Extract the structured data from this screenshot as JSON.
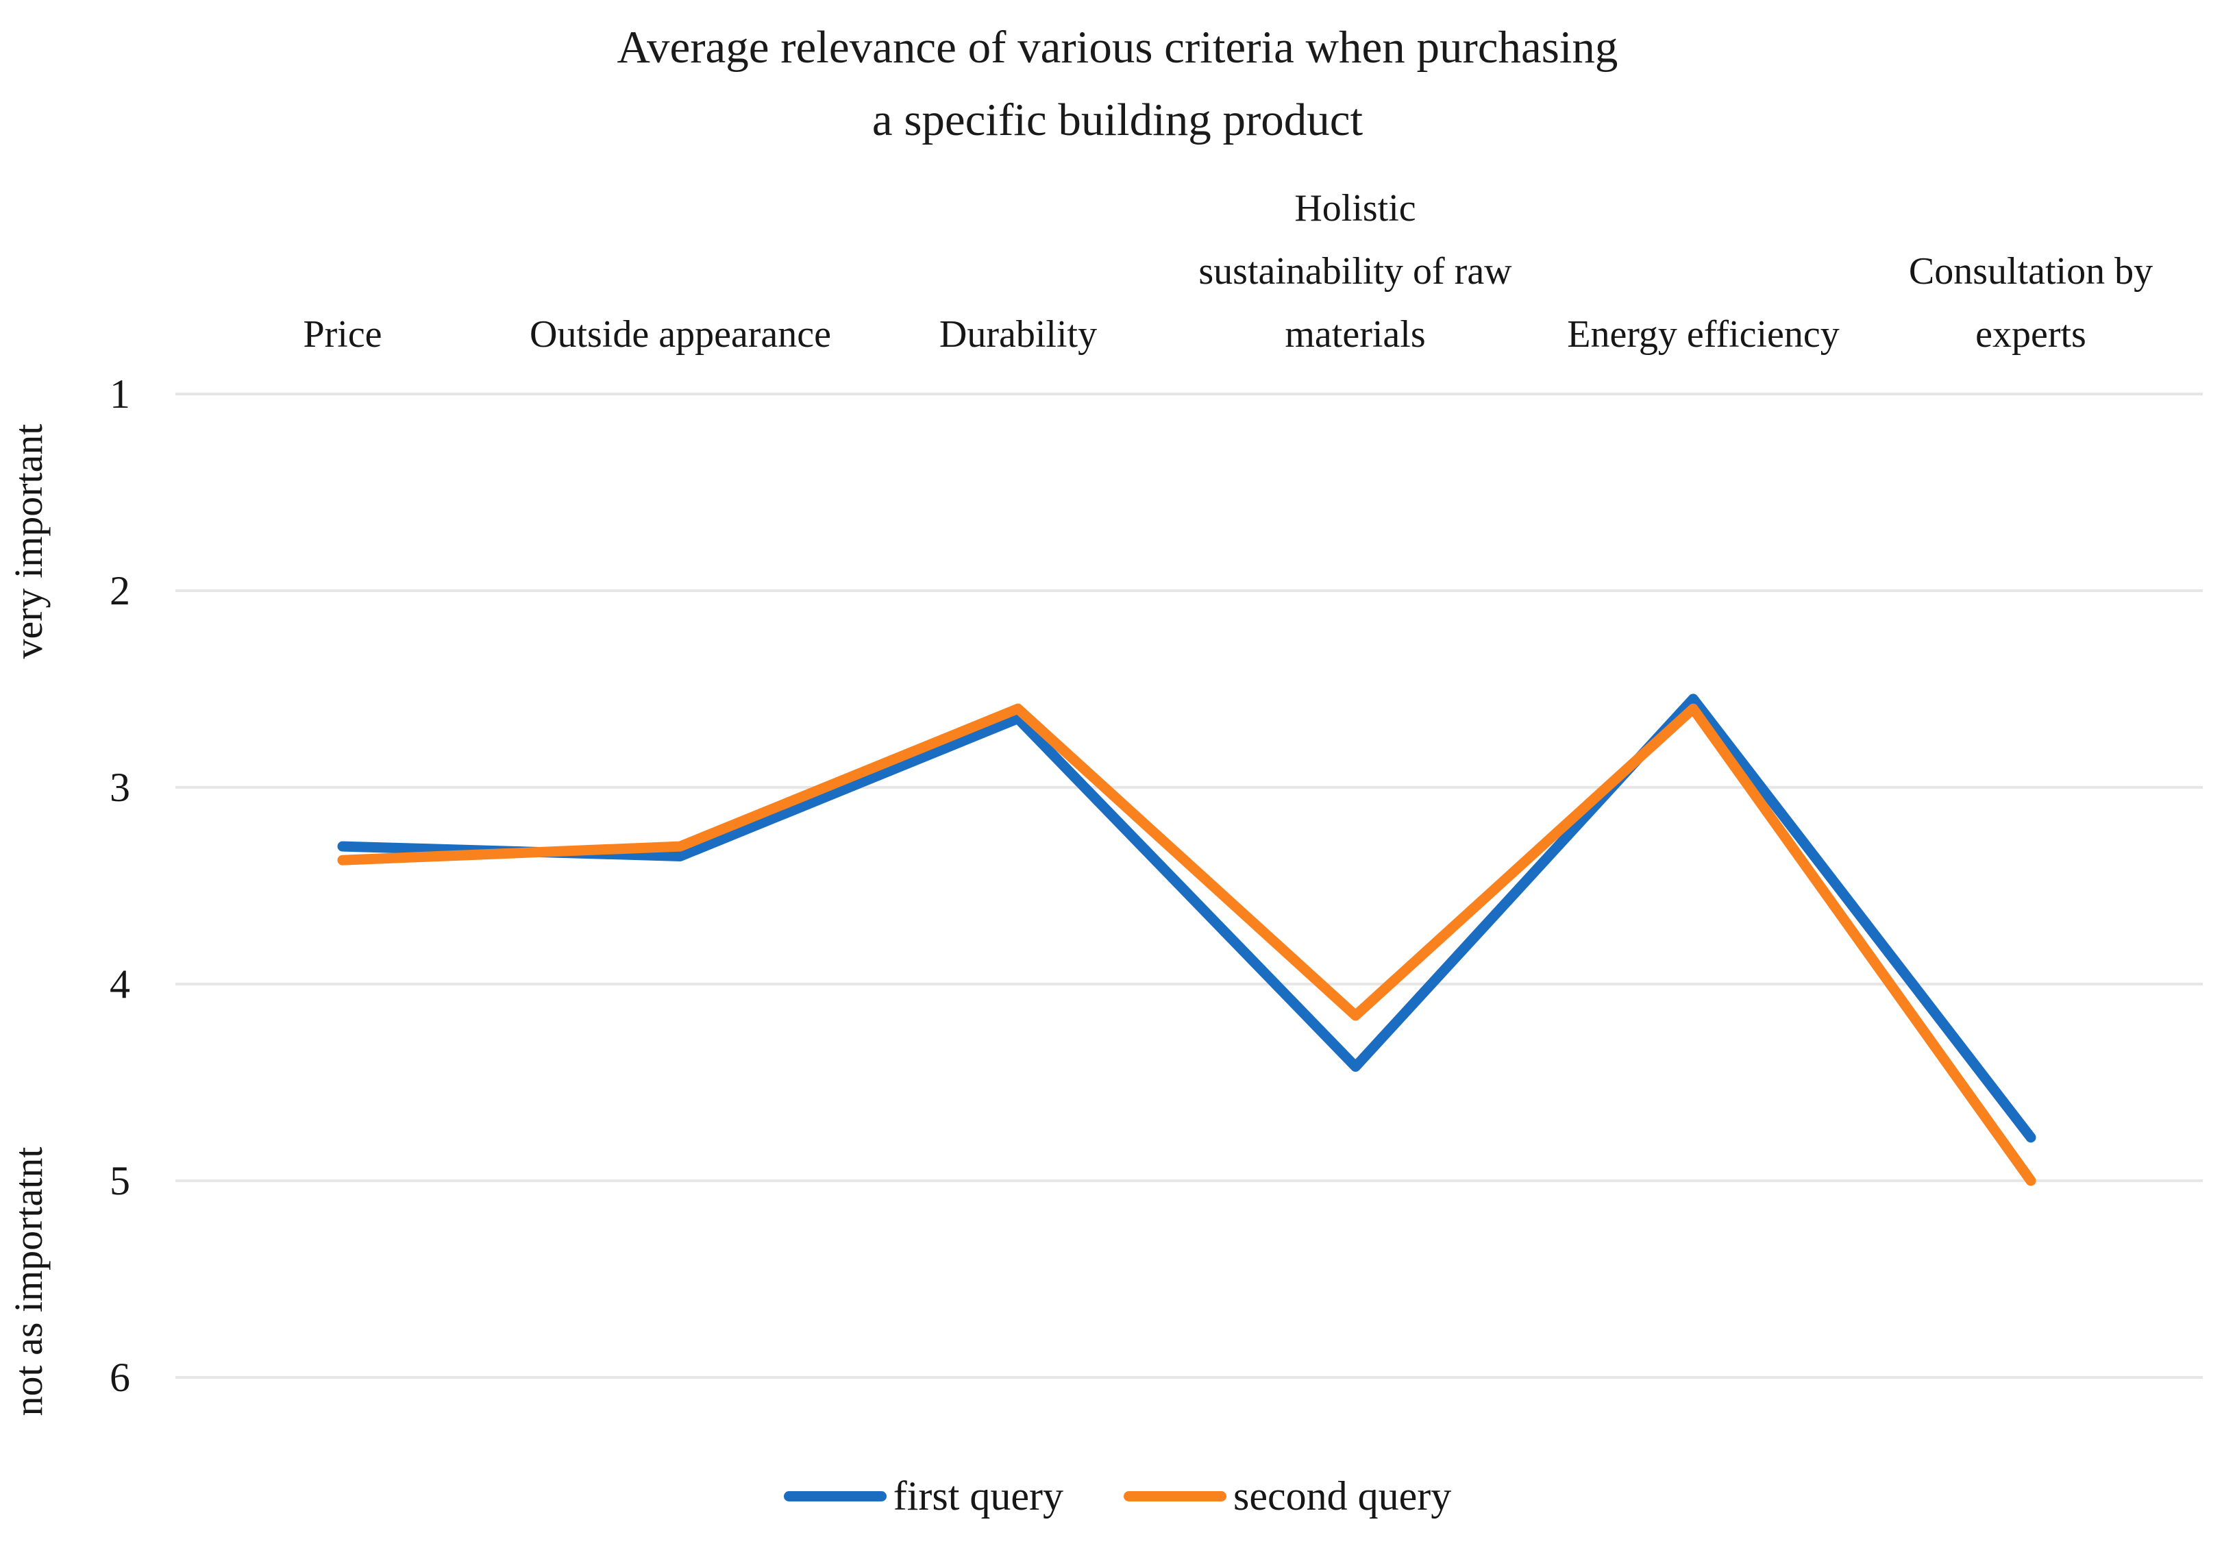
{
  "title": {
    "line1": "Average relevance of various criteria when purchasing",
    "line2": "a specific building product"
  },
  "y_axis": {
    "top_label": "very important",
    "bottom_label": "not as importatnt",
    "tick_labels": [
      "1",
      "2",
      "3",
      "4",
      "5",
      "6"
    ]
  },
  "legend": {
    "items": [
      {
        "label": "first query",
        "color": "#1B6DC1"
      },
      {
        "label": "second query",
        "color": "#F9821F"
      }
    ]
  },
  "chart_data": {
    "type": "line",
    "title": "Average relevance of various criteria when purchasing a specific building product",
    "categories": [
      "Price",
      "Outside appearance",
      "Durability",
      "Holistic sustainability of raw materials",
      "Energy efficiency",
      "Consultation by experts"
    ],
    "series": [
      {
        "name": "first query",
        "color": "#1B6DC1",
        "values": [
          3.3,
          3.35,
          2.65,
          4.42,
          2.55,
          4.78
        ]
      },
      {
        "name": "second query",
        "color": "#F9821F",
        "values": [
          3.37,
          3.3,
          2.6,
          4.16,
          2.6,
          5.0
        ]
      }
    ],
    "y_axis": {
      "min": 1,
      "max": 6,
      "reversed": true,
      "ticks": [
        1,
        2,
        3,
        4,
        5,
        6
      ],
      "top_anchor_label": "very important",
      "bottom_anchor_label": "not as importatnt"
    },
    "grid": "horizontal",
    "gridline_color": "#E6E6E6",
    "legend_position": "bottom",
    "markers": "none"
  }
}
